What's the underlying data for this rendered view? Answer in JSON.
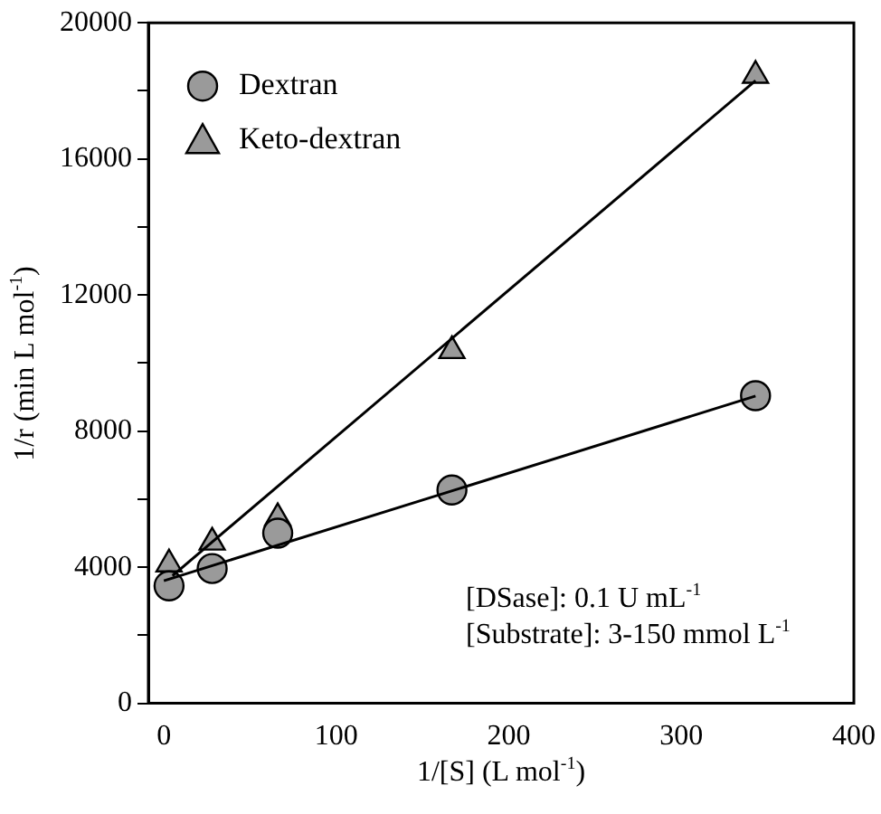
{
  "chart_data": {
    "type": "scatter",
    "xlabel": "1/[S] (L mol$^{-1}$)",
    "ylabel": "1/r (min L mol$^{-1}$)",
    "xlim": [
      -9,
      400
    ],
    "xticks": [
      0,
      100,
      200,
      300,
      400
    ],
    "ylim": [
      0,
      20000
    ],
    "yticks": [
      0,
      {
        "value": 2000,
        "label": null
      },
      4000,
      {
        "value": 6000,
        "label": null
      },
      8000,
      {
        "value": 10000,
        "label": null
      },
      12000,
      {
        "value": 14000,
        "label": null
      },
      16000,
      {
        "value": 18000,
        "label": null
      },
      20000
    ],
    "grid": false,
    "legend": "top left",
    "series": [
      {
        "name": "Dextran",
        "type": "scatter",
        "marker": "circle",
        "color": "#9a9a9a",
        "x": [
          3,
          28,
          66,
          167,
          343
        ],
        "values": [
          3450,
          3960,
          5000,
          6270,
          9040
        ]
      },
      {
        "name": "Keto-dextran",
        "type": "scatter",
        "marker": "triangle",
        "color": "#9a9a9a",
        "x": [
          3,
          28,
          66,
          167,
          343
        ],
        "values": [
          4090,
          4730,
          5450,
          10360,
          18450
        ]
      },
      {
        "type": "line",
        "marker": "none",
        "color": "#000000",
        "x": [
          0,
          343
        ],
        "values": [
          3600,
          9030
        ]
      },
      {
        "type": "line",
        "marker": "none",
        "color": "#000000",
        "x": [
          5,
          343
        ],
        "values": [
          3750,
          18300
        ]
      }
    ],
    "annotations": [
      "[DSase]: 0.1 U mL$^{-1}$",
      "[Substrate]: 3-150 mmol L$^{-1}$"
    ]
  }
}
